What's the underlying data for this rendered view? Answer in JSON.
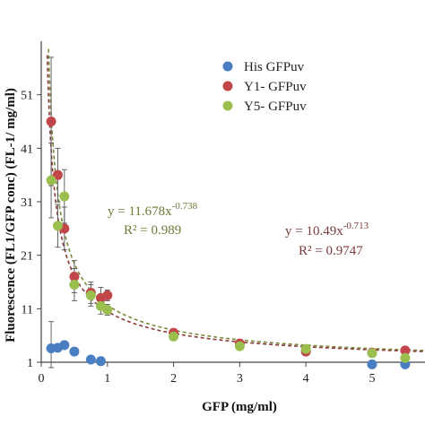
{
  "chart_data": {
    "type": "scatter",
    "title": "",
    "xlabel": "GFP (mg/ml)",
    "ylabel": "Fluorescence (FL1/GFP conc) (FL-1/ mg/ml)",
    "xlim": [
      0,
      5.8
    ],
    "ylim": [
      1,
      60
    ],
    "xticks": [
      0,
      1,
      2,
      3,
      4,
      5
    ],
    "yticks": [
      1,
      11,
      21,
      31,
      41,
      51
    ],
    "grid": false,
    "legend_position": "top-right",
    "series": [
      {
        "name": "His GFPuv",
        "color": "#4a7ec2",
        "points": [
          {
            "x": 0.15,
            "y": 3.6,
            "err": 5.0
          },
          {
            "x": 0.25,
            "y": 3.7,
            "err": 0
          },
          {
            "x": 0.35,
            "y": 4.2,
            "err": 0
          },
          {
            "x": 0.5,
            "y": 3.0,
            "err": 0
          },
          {
            "x": 0.75,
            "y": 1.5,
            "err": 0
          },
          {
            "x": 0.9,
            "y": 1.2,
            "err": 0
          },
          {
            "x": 5.0,
            "y": 0.6,
            "err": 0
          },
          {
            "x": 5.5,
            "y": 0.6,
            "err": 0
          }
        ]
      },
      {
        "name": "Y1- GFPuv",
        "color": "#c0464a",
        "points": [
          {
            "x": 0.15,
            "y": 46,
            "err": 12
          },
          {
            "x": 0.25,
            "y": 36,
            "err": 5
          },
          {
            "x": 0.35,
            "y": 26,
            "err": 4
          },
          {
            "x": 0.5,
            "y": 17,
            "err": 3
          },
          {
            "x": 0.75,
            "y": 14,
            "err": 2
          },
          {
            "x": 0.9,
            "y": 13,
            "err": 2
          },
          {
            "x": 1.0,
            "y": 13.5,
            "err": 1
          },
          {
            "x": 2.0,
            "y": 6.5,
            "err": 0.5
          },
          {
            "x": 3.0,
            "y": 4.5,
            "err": 0.5
          },
          {
            "x": 4.0,
            "y": 3.0,
            "err": 0.5
          },
          {
            "x": 5.0,
            "y": 2.8,
            "err": 0.3
          },
          {
            "x": 5.5,
            "y": 3.2,
            "err": 0.3
          }
        ]
      },
      {
        "name": "Y5- GFPuv",
        "color": "#9bbf4f",
        "points": [
          {
            "x": 0.15,
            "y": 35,
            "err": 7
          },
          {
            "x": 0.25,
            "y": 26.5,
            "err": 4
          },
          {
            "x": 0.35,
            "y": 32,
            "err": 5
          },
          {
            "x": 0.5,
            "y": 15.5,
            "err": 3
          },
          {
            "x": 0.75,
            "y": 13.5,
            "err": 2
          },
          {
            "x": 0.9,
            "y": 11.5,
            "err": 1.5
          },
          {
            "x": 1.0,
            "y": 10.8,
            "err": 1
          },
          {
            "x": 2.0,
            "y": 5.8,
            "err": 0.5
          },
          {
            "x": 3.0,
            "y": 4.0,
            "err": 0.5
          },
          {
            "x": 4.0,
            "y": 3.5,
            "err": 0.4
          },
          {
            "x": 5.0,
            "y": 2.7,
            "err": 0.3
          },
          {
            "x": 5.5,
            "y": 1.8,
            "err": 0.3
          }
        ]
      }
    ],
    "trendlines": [
      {
        "series": "Y5- GFPuv",
        "a": 11.678,
        "b": -0.738,
        "color": "#7a8a3a",
        "label_y": "y = 11.678x",
        "label_exp": "-0.738",
        "label_r2": "R² = 0.989"
      },
      {
        "series": "Y1- GFPuv",
        "a": 10.49,
        "b": -0.713,
        "color": "#8b3a3a",
        "label_y": "y = 10.49x",
        "label_exp": "-0.713",
        "label_r2": "R² = 0.9747"
      }
    ]
  }
}
